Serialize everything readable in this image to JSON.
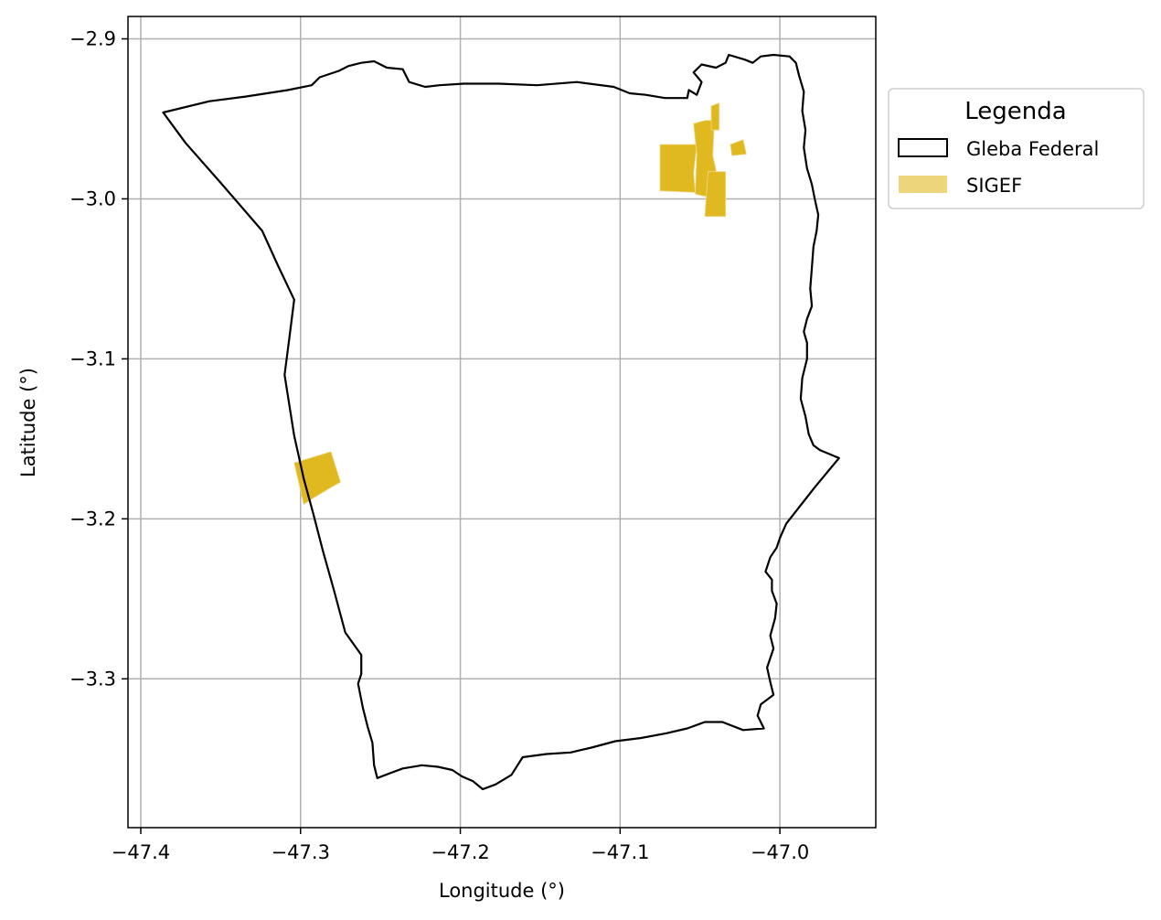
{
  "chart_data": {
    "type": "map",
    "xlabel": "Longitude (°)",
    "ylabel": "Latitude (°)",
    "xlim": [
      -47.408,
      -46.94
    ],
    "ylim": [
      -3.393,
      -2.886
    ],
    "xticks": [
      {
        "value": -47.4,
        "label": "−47.4"
      },
      {
        "value": -47.3,
        "label": "−47.3"
      },
      {
        "value": -47.2,
        "label": "−47.2"
      },
      {
        "value": -47.1,
        "label": "−47.1"
      },
      {
        "value": -47.0,
        "label": "−47.0"
      }
    ],
    "yticks": [
      {
        "value": -2.9,
        "label": "−2.9"
      },
      {
        "value": -3.0,
        "label": "−3.0"
      },
      {
        "value": -3.1,
        "label": "−3.1"
      },
      {
        "value": -3.2,
        "label": "−3.2"
      },
      {
        "value": -3.3,
        "label": "−3.3"
      }
    ],
    "grid": true,
    "legend": {
      "title": "Legenda",
      "placement": "outside-upper-right",
      "entries": [
        {
          "label": "Gleba Federal",
          "kind": "outline",
          "color": "#000000"
        },
        {
          "label": "SIGEF",
          "kind": "fill",
          "color": "#ecd57a"
        }
      ]
    },
    "gleba_federal": {
      "stroke": "#000000",
      "coordinates": [
        [
          -47.386,
          -2.946
        ],
        [
          -47.357,
          -2.939
        ],
        [
          -47.334,
          -2.936
        ],
        [
          -47.308,
          -2.932
        ],
        [
          -47.293,
          -2.929
        ],
        [
          -47.288,
          -2.924
        ],
        [
          -47.276,
          -2.92
        ],
        [
          -47.27,
          -2.917
        ],
        [
          -47.262,
          -2.915
        ],
        [
          -47.254,
          -2.914
        ],
        [
          -47.246,
          -2.918
        ],
        [
          -47.236,
          -2.919
        ],
        [
          -47.232,
          -2.927
        ],
        [
          -47.222,
          -2.93
        ],
        [
          -47.213,
          -2.929
        ],
        [
          -47.198,
          -2.928
        ],
        [
          -47.176,
          -2.928
        ],
        [
          -47.152,
          -2.929
        ],
        [
          -47.127,
          -2.927
        ],
        [
          -47.104,
          -2.93
        ],
        [
          -47.094,
          -2.934
        ],
        [
          -47.084,
          -2.935
        ],
        [
          -47.072,
          -2.937
        ],
        [
          -47.058,
          -2.937
        ],
        [
          -47.057,
          -2.932
        ],
        [
          -47.052,
          -2.935
        ],
        [
          -47.049,
          -2.927
        ],
        [
          -47.054,
          -2.921
        ],
        [
          -47.049,
          -2.916
        ],
        [
          -47.04,
          -2.918
        ],
        [
          -47.034,
          -2.915
        ],
        [
          -47.032,
          -2.91
        ],
        [
          -47.022,
          -2.913
        ],
        [
          -47.017,
          -2.915
        ],
        [
          -47.012,
          -2.911
        ],
        [
          -47.004,
          -2.91
        ],
        [
          -46.994,
          -2.911
        ],
        [
          -46.99,
          -2.915
        ],
        [
          -46.988,
          -2.923
        ],
        [
          -46.985,
          -2.933
        ],
        [
          -46.986,
          -2.945
        ],
        [
          -46.984,
          -2.957
        ],
        [
          -46.985,
          -2.968
        ],
        [
          -46.983,
          -2.981
        ],
        [
          -46.98,
          -2.991
        ],
        [
          -46.978,
          -3.001
        ],
        [
          -46.976,
          -3.01
        ],
        [
          -46.977,
          -3.02
        ],
        [
          -46.979,
          -3.03
        ],
        [
          -46.98,
          -3.043
        ],
        [
          -46.981,
          -3.056
        ],
        [
          -46.98,
          -3.067
        ],
        [
          -46.983,
          -3.075
        ],
        [
          -46.985,
          -3.083
        ],
        [
          -46.983,
          -3.09
        ],
        [
          -46.983,
          -3.1
        ],
        [
          -46.986,
          -3.112
        ],
        [
          -46.987,
          -3.125
        ],
        [
          -46.984,
          -3.136
        ],
        [
          -46.982,
          -3.147
        ],
        [
          -46.979,
          -3.154
        ],
        [
          -46.975,
          -3.157
        ],
        [
          -46.963,
          -3.162
        ],
        [
          -46.978,
          -3.18
        ],
        [
          -46.996,
          -3.203
        ],
        [
          -47.0,
          -3.212
        ],
        [
          -47.002,
          -3.218
        ],
        [
          -47.006,
          -3.224
        ],
        [
          -47.009,
          -3.233
        ],
        [
          -47.005,
          -3.238
        ],
        [
          -47.005,
          -3.245
        ],
        [
          -47.002,
          -3.253
        ],
        [
          -47.003,
          -3.262
        ],
        [
          -47.006,
          -3.273
        ],
        [
          -47.004,
          -3.281
        ],
        [
          -47.008,
          -3.293
        ],
        [
          -47.006,
          -3.302
        ],
        [
          -47.004,
          -3.31
        ],
        [
          -47.012,
          -3.316
        ],
        [
          -47.014,
          -3.323
        ],
        [
          -47.01,
          -3.331
        ],
        [
          -47.023,
          -3.332
        ],
        [
          -47.036,
          -3.327
        ],
        [
          -47.047,
          -3.327
        ],
        [
          -47.058,
          -3.331
        ],
        [
          -47.071,
          -3.334
        ],
        [
          -47.087,
          -3.337
        ],
        [
          -47.103,
          -3.339
        ],
        [
          -47.118,
          -3.343
        ],
        [
          -47.131,
          -3.346
        ],
        [
          -47.146,
          -3.347
        ],
        [
          -47.161,
          -3.349
        ],
        [
          -47.168,
          -3.36
        ],
        [
          -47.178,
          -3.366
        ],
        [
          -47.186,
          -3.369
        ],
        [
          -47.192,
          -3.364
        ],
        [
          -47.199,
          -3.361
        ],
        [
          -47.205,
          -3.357
        ],
        [
          -47.214,
          -3.355
        ],
        [
          -47.224,
          -3.354
        ],
        [
          -47.236,
          -3.356
        ],
        [
          -47.244,
          -3.359
        ],
        [
          -47.252,
          -3.362
        ],
        [
          -47.254,
          -3.354
        ],
        [
          -47.255,
          -3.34
        ],
        [
          -47.258,
          -3.33
        ],
        [
          -47.261,
          -3.318
        ],
        [
          -47.264,
          -3.303
        ],
        [
          -47.262,
          -3.297
        ],
        [
          -47.262,
          -3.285
        ],
        [
          -47.272,
          -3.271
        ],
        [
          -47.279,
          -3.245
        ],
        [
          -47.286,
          -3.22
        ],
        [
          -47.292,
          -3.197
        ],
        [
          -47.298,
          -3.175
        ],
        [
          -47.304,
          -3.148
        ],
        [
          -47.31,
          -3.11
        ],
        [
          -47.307,
          -3.087
        ],
        [
          -47.304,
          -3.063
        ],
        [
          -47.314,
          -3.042
        ],
        [
          -47.324,
          -3.02
        ],
        [
          -47.35,
          -2.99
        ],
        [
          -47.372,
          -2.965
        ],
        [
          -47.386,
          -2.946
        ]
      ]
    },
    "sigef": {
      "color": "#ecd57a",
      "parcels": [
        {
          "coordinates": [
            [
              -47.075,
              -2.966
            ],
            [
              -47.052,
              -2.966
            ],
            [
              -47.054,
              -2.984
            ],
            [
              -47.053,
              -2.996
            ],
            [
              -47.075,
              -2.995
            ]
          ]
        },
        {
          "coordinates": [
            [
              -47.054,
              -2.953
            ],
            [
              -47.047,
              -2.951
            ],
            [
              -47.041,
              -2.951
            ],
            [
              -47.042,
              -2.973
            ],
            [
              -47.04,
              -2.982
            ],
            [
              -47.044,
              -2.999
            ],
            [
              -47.053,
              -2.997
            ],
            [
              -47.052,
              -2.972
            ]
          ]
        },
        {
          "coordinates": [
            [
              -47.045,
              -2.983
            ],
            [
              -47.034,
              -2.983
            ],
            [
              -47.034,
              -3.011
            ],
            [
              -47.047,
              -3.011
            ]
          ]
        },
        {
          "coordinates": [
            [
              -47.043,
              -2.942
            ],
            [
              -47.038,
              -2.94
            ],
            [
              -47.038,
              -2.957
            ],
            [
              -47.043,
              -2.957
            ]
          ]
        },
        {
          "coordinates": [
            [
              -47.031,
              -2.966
            ],
            [
              -47.023,
              -2.963
            ],
            [
              -47.021,
              -2.972
            ],
            [
              -47.03,
              -2.973
            ]
          ]
        },
        {
          "coordinates": [
            [
              -47.304,
              -3.165
            ],
            [
              -47.281,
              -3.158
            ],
            [
              -47.275,
              -3.177
            ],
            [
              -47.282,
              -3.181
            ],
            [
              -47.292,
              -3.187
            ],
            [
              -47.298,
              -3.191
            ]
          ]
        }
      ]
    }
  }
}
